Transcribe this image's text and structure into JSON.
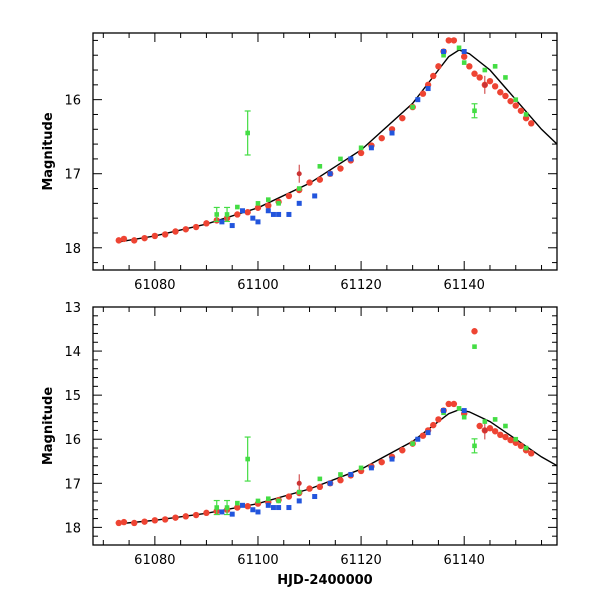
{
  "chart_data": [
    {
      "type": "scatter",
      "panel": "top",
      "xlabel": "",
      "ylabel": "Magnitude",
      "xlim": [
        61068,
        61158
      ],
      "ylim": [
        18.3,
        15.1
      ],
      "y_inverted": true,
      "x_ticks": [
        61080,
        61100,
        61120,
        61140
      ],
      "x_tick_labels": [
        "61080",
        "61100",
        "61120",
        "61140"
      ],
      "y_ticks": [
        16,
        17,
        18
      ],
      "y_tick_labels": [
        "16",
        "17",
        "18"
      ],
      "model_curve": {
        "name": "model",
        "color": "#000000",
        "x": [
          61073,
          61080,
          61090,
          61100,
          61110,
          61120,
          61130,
          61135,
          61137,
          61139,
          61141,
          61145,
          61150,
          61155,
          61158
        ],
        "y": [
          17.92,
          17.84,
          17.68,
          17.46,
          17.13,
          16.68,
          16.05,
          15.6,
          15.42,
          15.33,
          15.38,
          15.6,
          16.0,
          16.4,
          16.6
        ]
      },
      "series": [
        {
          "name": "red",
          "color": "#ee4433",
          "x": [
            61073,
            61074,
            61076,
            61078,
            61080,
            61082,
            61084,
            61086,
            61088,
            61090,
            61092,
            61094,
            61096,
            61098,
            61100,
            61102,
            61104,
            61106,
            61108,
            61110,
            61112,
            61114,
            61116,
            61118,
            61120,
            61122,
            61124,
            61126,
            61128,
            61130,
            61132,
            61133,
            61134,
            61135,
            61136,
            61137,
            61138,
            61140,
            61141,
            61142,
            61143,
            61144,
            61145,
            61146,
            61147,
            61148,
            61149,
            61150,
            61151,
            61152,
            61153
          ],
          "y": [
            17.9,
            17.88,
            17.9,
            17.87,
            17.84,
            17.82,
            17.78,
            17.75,
            17.72,
            17.67,
            17.63,
            17.6,
            17.55,
            17.52,
            17.46,
            17.43,
            17.38,
            17.3,
            17.22,
            17.12,
            17.08,
            17.0,
            16.93,
            16.82,
            16.72,
            16.62,
            16.52,
            16.4,
            16.25,
            16.1,
            15.92,
            15.8,
            15.68,
            15.55,
            15.35,
            15.2,
            15.2,
            15.42,
            15.55,
            15.65,
            15.7,
            15.8,
            15.75,
            15.82,
            15.9,
            15.95,
            16.02,
            16.08,
            16.15,
            16.25,
            16.32
          ]
        },
        {
          "name": "red-outlier",
          "color": "#cc3333",
          "x": [
            61108,
            61144
          ],
          "y": [
            17.0,
            15.8
          ]
        },
        {
          "name": "green",
          "color": "#44dd44",
          "x": [
            61092,
            61094,
            61096,
            61098,
            61100,
            61102,
            61104,
            61108,
            61112,
            61116,
            61120,
            61130,
            61136,
            61139,
            61140,
            61142,
            61144,
            61146,
            61148,
            61150,
            61152
          ],
          "y": [
            17.55,
            17.55,
            17.45,
            16.45,
            17.4,
            17.35,
            17.4,
            17.2,
            16.9,
            16.8,
            16.65,
            16.1,
            15.4,
            15.3,
            15.5,
            16.15,
            15.6,
            15.55,
            15.7,
            16.0,
            16.2
          ]
        },
        {
          "name": "blue",
          "color": "#2255dd",
          "x": [
            61093,
            61095,
            61097,
            61099,
            61100,
            61102,
            61103,
            61104,
            61106,
            61108,
            61111,
            61114,
            61118,
            61122,
            61126,
            61131,
            61133,
            61136,
            61140
          ],
          "y": [
            17.65,
            17.7,
            17.5,
            17.6,
            17.65,
            17.5,
            17.55,
            17.55,
            17.55,
            17.4,
            17.3,
            17.0,
            16.8,
            16.65,
            16.45,
            16.0,
            15.85,
            15.35,
            15.35
          ]
        }
      ]
    },
    {
      "type": "scatter",
      "panel": "bottom",
      "xlabel": "HJD-2400000",
      "ylabel": "Magnitude",
      "xlim": [
        61068,
        61158
      ],
      "ylim": [
        18.4,
        13.0
      ],
      "y_inverted": true,
      "x_ticks": [
        61080,
        61100,
        61120,
        61140
      ],
      "x_tick_labels": [
        "61080",
        "61100",
        "61120",
        "61140"
      ],
      "y_ticks": [
        13,
        14,
        15,
        16,
        17,
        18
      ],
      "y_tick_labels": [
        "13",
        "14",
        "15",
        "16",
        "17",
        "18"
      ],
      "model_curve": {
        "name": "model",
        "color": "#000000",
        "x": [
          61073,
          61080,
          61090,
          61100,
          61110,
          61120,
          61130,
          61135,
          61137,
          61139,
          61141,
          61145,
          61150,
          61155,
          61158
        ],
        "y": [
          17.92,
          17.84,
          17.68,
          17.46,
          17.13,
          16.68,
          16.05,
          15.6,
          15.42,
          15.33,
          15.38,
          15.6,
          16.0,
          16.4,
          16.6
        ]
      },
      "series": [
        {
          "name": "red",
          "color": "#ee4433",
          "x": [
            61073,
            61074,
            61076,
            61078,
            61080,
            61082,
            61084,
            61086,
            61088,
            61090,
            61092,
            61094,
            61096,
            61098,
            61100,
            61102,
            61104,
            61106,
            61108,
            61110,
            61112,
            61114,
            61116,
            61118,
            61120,
            61122,
            61124,
            61126,
            61128,
            61130,
            61132,
            61133,
            61134,
            61135,
            61136,
            61137,
            61138,
            61140,
            61142,
            61143,
            61144,
            61145,
            61146,
            61147,
            61148,
            61149,
            61150,
            61151,
            61152,
            61153
          ],
          "y": [
            17.9,
            17.88,
            17.9,
            17.87,
            17.84,
            17.82,
            17.78,
            17.75,
            17.72,
            17.67,
            17.63,
            17.6,
            17.55,
            17.52,
            17.46,
            17.43,
            17.38,
            17.3,
            17.22,
            17.12,
            17.08,
            17.0,
            16.93,
            16.82,
            16.72,
            16.62,
            16.52,
            16.4,
            16.25,
            16.1,
            15.92,
            15.8,
            15.68,
            15.55,
            15.35,
            15.2,
            15.2,
            15.42,
            13.55,
            15.7,
            15.8,
            15.75,
            15.82,
            15.9,
            15.95,
            16.02,
            16.08,
            16.15,
            16.25,
            16.32
          ]
        },
        {
          "name": "red-outlier",
          "color": "#cc3333",
          "x": [
            61108,
            61144
          ],
          "y": [
            17.0,
            15.8
          ]
        },
        {
          "name": "green",
          "color": "#44dd44",
          "x": [
            61092,
            61094,
            61096,
            61098,
            61100,
            61102,
            61104,
            61108,
            61112,
            61116,
            61120,
            61130,
            61136,
            61139,
            61140,
            61142,
            61142,
            61144,
            61146,
            61148,
            61150,
            61152
          ],
          "y": [
            17.55,
            17.55,
            17.45,
            16.45,
            17.4,
            17.35,
            17.4,
            17.2,
            16.9,
            16.8,
            16.65,
            16.1,
            15.4,
            15.3,
            15.5,
            16.15,
            13.9,
            15.6,
            15.55,
            15.7,
            16.0,
            16.2
          ]
        },
        {
          "name": "blue",
          "color": "#2255dd",
          "x": [
            61093,
            61095,
            61097,
            61099,
            61100,
            61102,
            61103,
            61104,
            61106,
            61108,
            61111,
            61114,
            61118,
            61122,
            61126,
            61131,
            61133,
            61136,
            61140
          ],
          "y": [
            17.65,
            17.7,
            17.5,
            17.6,
            17.65,
            17.5,
            17.55,
            17.55,
            17.55,
            17.4,
            17.3,
            17.0,
            16.8,
            16.65,
            16.45,
            16.0,
            15.85,
            15.35,
            15.35
          ]
        }
      ]
    }
  ]
}
